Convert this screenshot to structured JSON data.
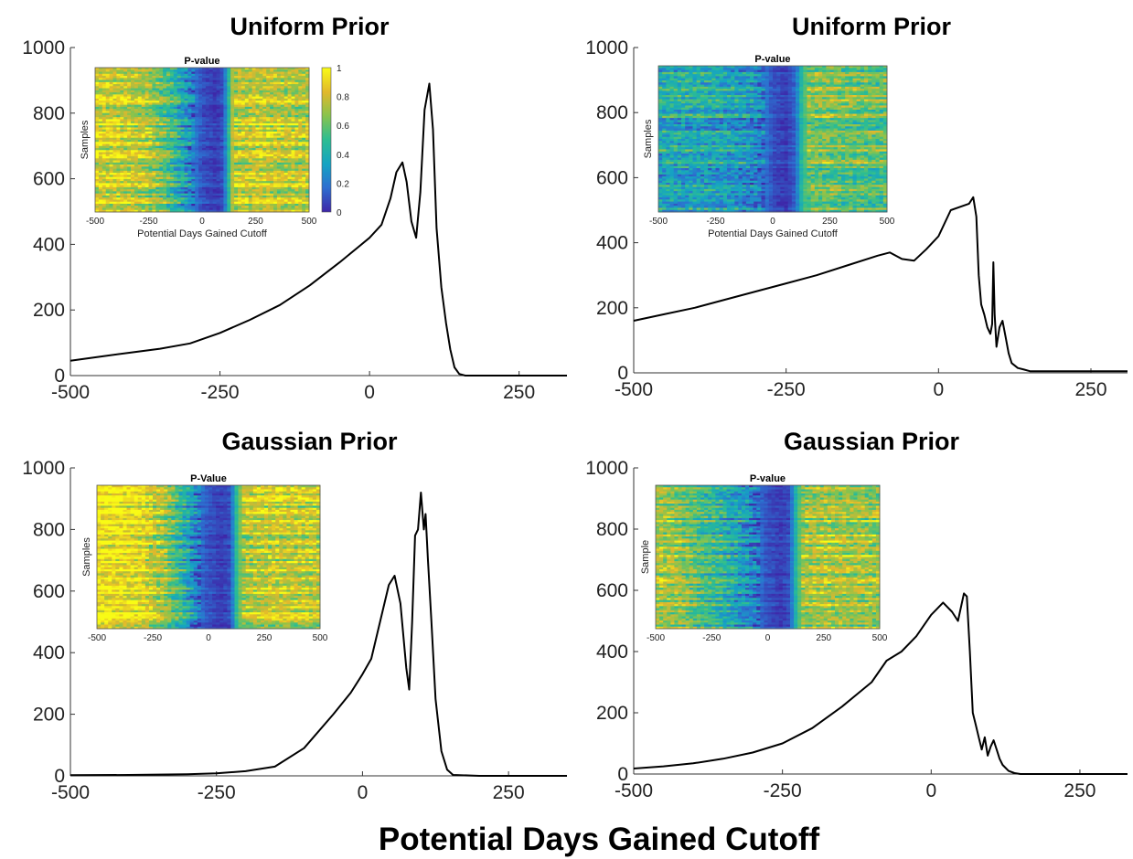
{
  "figure": {
    "xlabel": "Potential Days Gained Cutoff"
  },
  "colors": {
    "line": "#000000",
    "colormap": [
      "#3e26a8",
      "#2d6fd0",
      "#15a3c3",
      "#2cbd92",
      "#8ac34c",
      "#e1b82c",
      "#f9fb15"
    ]
  },
  "chart_data": [
    {
      "type": "line",
      "title": "Uniform Prior",
      "xlim": [
        -500,
        330
      ],
      "ylim": [
        0,
        1000
      ],
      "xticks": [
        "-500",
        "-250",
        "0",
        "250"
      ],
      "xtick_values": [
        -500,
        -250,
        0,
        250
      ],
      "yticks": [
        "0",
        "200",
        "400",
        "600",
        "800",
        "1000"
      ],
      "ytick_values": [
        0,
        200,
        400,
        600,
        800,
        1000
      ],
      "x": [
        -500,
        -450,
        -400,
        -350,
        -300,
        -250,
        -200,
        -150,
        -100,
        -50,
        -20,
        0,
        20,
        35,
        45,
        55,
        62,
        70,
        78,
        85,
        92,
        100,
        106,
        112,
        120,
        128,
        135,
        142,
        150,
        160,
        200,
        250,
        330
      ],
      "y": [
        45,
        58,
        70,
        82,
        98,
        130,
        170,
        215,
        275,
        345,
        390,
        420,
        460,
        540,
        620,
        650,
        590,
        470,
        420,
        560,
        810,
        890,
        750,
        450,
        270,
        160,
        80,
        25,
        5,
        0,
        0,
        0,
        0
      ],
      "inset": {
        "type": "heatmap",
        "title": "P-value",
        "xlabel": "Potential Days Gained Cutoff",
        "ylabel": "Samples",
        "xticks": [
          "-500",
          "-250",
          "0",
          "250",
          "500"
        ],
        "colorbar": true,
        "colorbar_ticks": [
          "0",
          "0.2",
          "0.4",
          "0.6",
          "0.8",
          "1"
        ],
        "profile_x": [
          -500,
          -350,
          -250,
          -150,
          -50,
          0,
          60,
          100,
          120,
          140,
          180,
          250,
          350,
          500
        ],
        "profile_v": [
          0.85,
          0.82,
          0.75,
          0.55,
          0.25,
          0.1,
          0.05,
          0.1,
          0.4,
          0.75,
          0.8,
          0.82,
          0.8,
          0.78
        ]
      }
    },
    {
      "type": "line",
      "title": "Uniform Prior",
      "xlim": [
        -500,
        310
      ],
      "ylim": [
        0,
        1000
      ],
      "xticks": [
        "-500",
        "-250",
        "0",
        "250"
      ],
      "xtick_values": [
        -500,
        -250,
        0,
        250
      ],
      "yticks": [
        "0",
        "200",
        "400",
        "600",
        "800",
        "1000"
      ],
      "ytick_values": [
        0,
        200,
        400,
        600,
        800,
        1000
      ],
      "x": [
        -500,
        -450,
        -400,
        -350,
        -300,
        -250,
        -200,
        -150,
        -100,
        -80,
        -60,
        -40,
        -20,
        0,
        20,
        35,
        50,
        57,
        62,
        66,
        70,
        75,
        80,
        85,
        88,
        90,
        92,
        95,
        100,
        105,
        110,
        115,
        120,
        130,
        140,
        150,
        160,
        200,
        250,
        310
      ],
      "y": [
        160,
        180,
        200,
        225,
        250,
        275,
        300,
        330,
        360,
        370,
        350,
        345,
        380,
        420,
        500,
        510,
        520,
        540,
        480,
        300,
        210,
        180,
        140,
        120,
        150,
        340,
        180,
        80,
        140,
        160,
        110,
        60,
        30,
        15,
        10,
        5,
        5,
        5,
        5,
        5
      ],
      "inset": {
        "type": "heatmap",
        "title": "P-value",
        "xlabel": "Potential Days Gained Cutoff",
        "ylabel": "Samples",
        "xticks": [
          "-500",
          "-250",
          "0",
          "250",
          "500"
        ],
        "colorbar": false,
        "profile_x": [
          -500,
          -300,
          -150,
          -50,
          0,
          60,
          100,
          130,
          160,
          250,
          350,
          500
        ],
        "profile_v": [
          0.4,
          0.4,
          0.35,
          0.25,
          0.1,
          0.05,
          0.15,
          0.5,
          0.65,
          0.65,
          0.6,
          0.6
        ]
      }
    },
    {
      "type": "line",
      "title": "Gaussian Prior",
      "xlim": [
        -500,
        350
      ],
      "ylim": [
        0,
        1000
      ],
      "xticks": [
        "-500",
        "-250",
        "0",
        "250"
      ],
      "xtick_values": [
        -500,
        -250,
        0,
        250
      ],
      "yticks": [
        "0",
        "200",
        "400",
        "600",
        "800",
        "1000"
      ],
      "ytick_values": [
        0,
        200,
        400,
        600,
        800,
        1000
      ],
      "x": [
        -500,
        -400,
        -300,
        -250,
        -200,
        -150,
        -100,
        -50,
        -20,
        0,
        15,
        30,
        45,
        55,
        65,
        75,
        80,
        85,
        90,
        95,
        100,
        105,
        108,
        112,
        118,
        125,
        135,
        145,
        155,
        200,
        250,
        350
      ],
      "y": [
        2,
        3,
        5,
        8,
        15,
        30,
        90,
        200,
        270,
        330,
        380,
        500,
        620,
        650,
        560,
        350,
        280,
        500,
        780,
        800,
        920,
        800,
        850,
        700,
        500,
        250,
        80,
        20,
        3,
        0,
        0,
        0
      ],
      "inset": {
        "type": "heatmap",
        "title": "P-Value",
        "xlabel": "",
        "ylabel": "Samples",
        "xticks": [
          "-500",
          "-250",
          "0",
          "250",
          "500"
        ],
        "colorbar": false,
        "profile_x": [
          -500,
          -400,
          -300,
          -200,
          -100,
          -50,
          0,
          60,
          100,
          130,
          160,
          250,
          350,
          500
        ],
        "profile_v": [
          0.95,
          0.93,
          0.88,
          0.7,
          0.4,
          0.2,
          0.1,
          0.05,
          0.1,
          0.55,
          0.75,
          0.8,
          0.8,
          0.78
        ]
      }
    },
    {
      "type": "line",
      "title": "Gaussian Prior",
      "xlim": [
        -500,
        330
      ],
      "ylim": [
        0,
        1000
      ],
      "xticks": [
        "-500",
        "-250",
        "0",
        "250"
      ],
      "xtick_values": [
        -500,
        -250,
        0,
        250
      ],
      "yticks": [
        "0",
        "200",
        "400",
        "600",
        "800",
        "1000"
      ],
      "ytick_values": [
        0,
        200,
        400,
        600,
        800,
        1000
      ],
      "x": [
        -500,
        -450,
        -400,
        -350,
        -300,
        -250,
        -200,
        -150,
        -100,
        -75,
        -50,
        -25,
        0,
        20,
        35,
        45,
        55,
        60,
        65,
        70,
        75,
        80,
        85,
        90,
        95,
        100,
        105,
        110,
        115,
        120,
        130,
        140,
        150,
        200,
        250,
        330
      ],
      "y": [
        18,
        25,
        35,
        50,
        70,
        100,
        150,
        220,
        300,
        370,
        400,
        450,
        520,
        560,
        530,
        500,
        590,
        580,
        400,
        200,
        160,
        120,
        80,
        120,
        60,
        90,
        110,
        80,
        50,
        30,
        10,
        3,
        0,
        0,
        0,
        0
      ],
      "inset": {
        "type": "heatmap",
        "title": "P-value",
        "xlabel": "",
        "ylabel": "Sample",
        "xticks": [
          "-500",
          "-250",
          "0",
          "250",
          "500"
        ],
        "colorbar": false,
        "profile_x": [
          -500,
          -400,
          -300,
          -200,
          -100,
          -50,
          0,
          60,
          100,
          130,
          160,
          250,
          350,
          500
        ],
        "profile_v": [
          0.75,
          0.68,
          0.55,
          0.45,
          0.3,
          0.2,
          0.1,
          0.05,
          0.1,
          0.5,
          0.7,
          0.75,
          0.72,
          0.7
        ]
      }
    }
  ]
}
